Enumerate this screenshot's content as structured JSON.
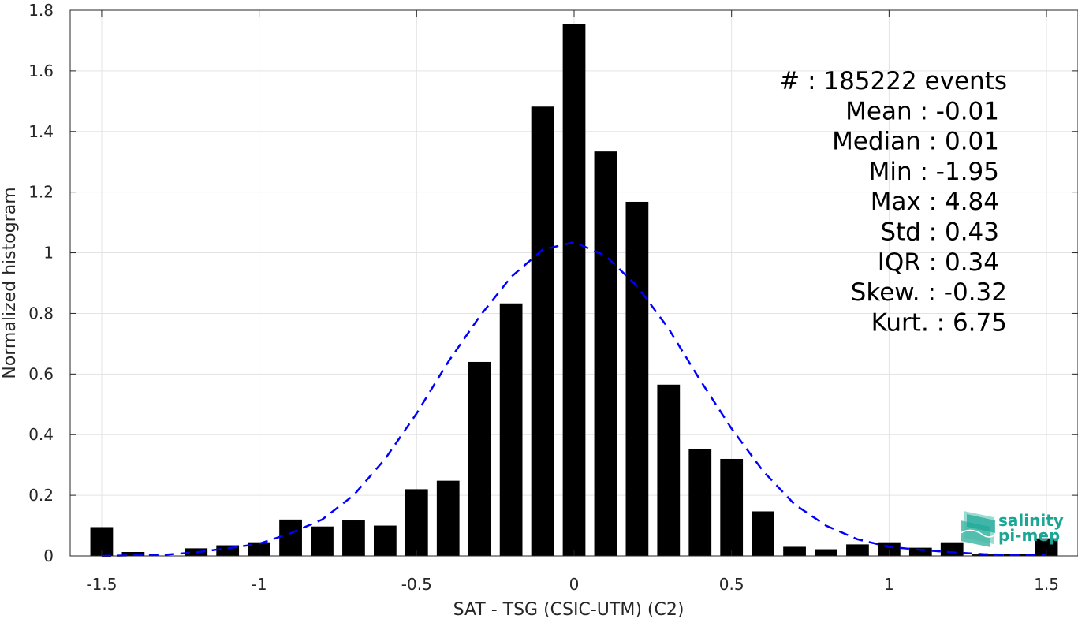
{
  "chart_data": {
    "type": "bar",
    "x": [
      -1.5,
      -1.4,
      -1.3,
      -1.2,
      -1.1,
      -1.0,
      -0.9,
      -0.8,
      -0.7,
      -0.6,
      -0.5,
      -0.4,
      -0.3,
      -0.2,
      -0.1,
      0.0,
      0.1,
      0.2,
      0.3,
      0.4,
      0.5,
      0.6,
      0.7,
      0.8,
      0.9,
      1.0,
      1.1,
      1.2,
      1.3,
      1.4,
      1.5
    ],
    "values": [
      0.095,
      0.013,
      0.0,
      0.025,
      0.035,
      0.045,
      0.12,
      0.097,
      0.117,
      0.1,
      0.22,
      0.248,
      0.64,
      0.833,
      1.482,
      1.755,
      1.334,
      1.168,
      0.565,
      0.353,
      0.32,
      0.147,
      0.03,
      0.022,
      0.038,
      0.045,
      0.027,
      0.045,
      0.005,
      0.007,
      0.058
    ],
    "fit": {
      "x": [
        -1.5,
        -1.4,
        -1.3,
        -1.2,
        -1.1,
        -1.0,
        -0.9,
        -0.8,
        -0.7,
        -0.6,
        -0.5,
        -0.4,
        -0.3,
        -0.2,
        -0.1,
        0.0,
        0.1,
        0.2,
        0.3,
        0.4,
        0.5,
        0.6,
        0.7,
        0.8,
        0.9,
        1.0,
        1.1,
        1.2,
        1.3,
        1.4,
        1.5
      ],
      "y": [
        0.0,
        0.002,
        0.004,
        0.012,
        0.025,
        0.04,
        0.075,
        0.12,
        0.2,
        0.32,
        0.47,
        0.64,
        0.79,
        0.92,
        1.01,
        1.035,
        0.99,
        0.89,
        0.75,
        0.58,
        0.42,
        0.28,
        0.17,
        0.1,
        0.055,
        0.03,
        0.02,
        0.012,
        0.006,
        0.003,
        0.002
      ],
      "color": "#0000ff",
      "style": "dashed"
    },
    "bar_color": "#000000",
    "xlabel": "SAT - TSG (CSIC-UTM) (C2)",
    "ylabel": "Normalized histogram",
    "xlim": [
      -1.6,
      1.6
    ],
    "ylim": [
      0,
      1.8
    ],
    "xticks": [
      -1.5,
      -1,
      -0.5,
      0,
      0.5,
      1,
      1.5
    ],
    "xtick_labels": [
      "-1.5",
      "-1",
      "-0.5",
      "0",
      "0.5",
      "1",
      "1.5"
    ],
    "yticks": [
      0,
      0.2,
      0.4,
      0.6,
      0.8,
      1,
      1.2,
      1.4,
      1.6,
      1.8
    ],
    "ytick_labels": [
      "0",
      "0.2",
      "0.4",
      "0.6",
      "0.8",
      "1",
      "1.2",
      "1.4",
      "1.6",
      "1.8"
    ],
    "grid": true,
    "stats": [
      "#  : 185222 events",
      "Mean : -0.01",
      "Median : 0.01",
      "Min : -1.95",
      "Max : 4.84",
      "Std : 0.43",
      "IQR : 0.34",
      "Skew. : -0.32",
      "Kurt. : 6.75"
    ]
  },
  "logo": {
    "line1": "salinity",
    "line2": "pi-mep",
    "color": "#1aa595"
  }
}
